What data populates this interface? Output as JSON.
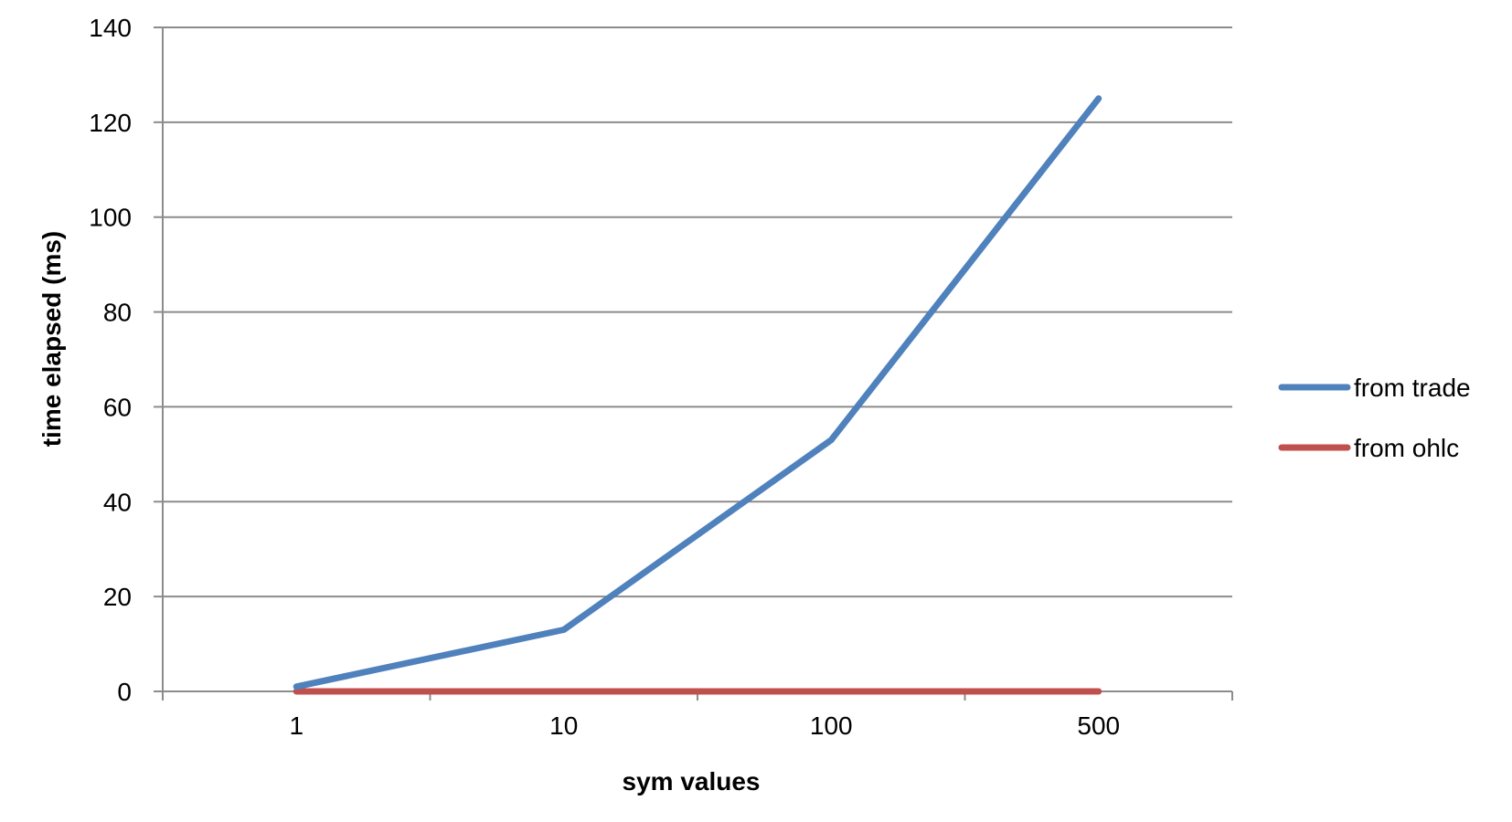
{
  "chart_data": {
    "type": "line",
    "title": "",
    "xlabel": "sym values",
    "ylabel": "time elapsed (ms)",
    "categories": [
      "1",
      "10",
      "100",
      "500"
    ],
    "ylim": [
      0,
      140
    ],
    "yticks": [
      0,
      20,
      40,
      60,
      80,
      100,
      120,
      140
    ],
    "grid": "horizontal",
    "legend_position": "right",
    "series": [
      {
        "name": "from trade",
        "values": [
          1,
          13,
          53,
          125
        ],
        "color": "#4F81BD"
      },
      {
        "name": "from ohlc",
        "values": [
          0,
          0,
          0,
          0
        ],
        "color": "#C0504D"
      }
    ]
  }
}
